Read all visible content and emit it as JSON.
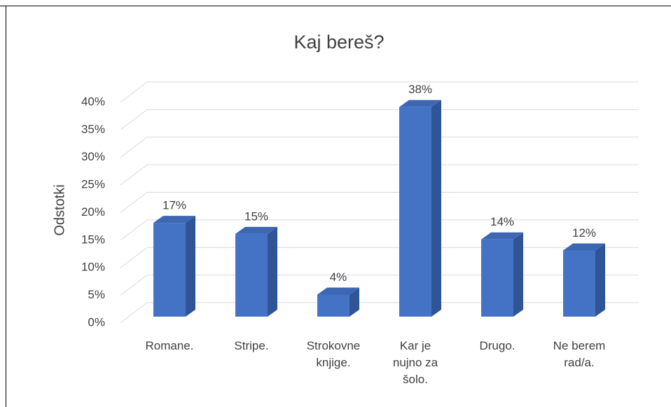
{
  "chart_data": {
    "type": "bar3d",
    "title": "Kaj bereš?",
    "ylabel": "Odstotki",
    "categories": [
      "Romane.",
      "Stripe.",
      "Strokovne knjige.",
      "Kar je nujno za šolo.",
      "Drugo.",
      "Ne berem rad/a."
    ],
    "values": [
      17,
      15,
      4,
      38,
      14,
      12
    ],
    "value_labels": [
      "17%",
      "15%",
      "4%",
      "38%",
      "14%",
      "12%"
    ],
    "color": "#4472c4",
    "ylim": [
      0,
      40
    ],
    "yticks": [
      {
        "value": 0,
        "label": "0%"
      },
      {
        "value": 5,
        "label": "5%"
      },
      {
        "value": 10,
        "label": "10%"
      },
      {
        "value": 15,
        "label": "15%"
      },
      {
        "value": 20,
        "label": "20%"
      },
      {
        "value": 25,
        "label": "25%"
      },
      {
        "value": 30,
        "label": "30%"
      },
      {
        "value": 35,
        "label": "35%"
      },
      {
        "value": 40,
        "label": "40%"
      }
    ],
    "grid": true
  }
}
